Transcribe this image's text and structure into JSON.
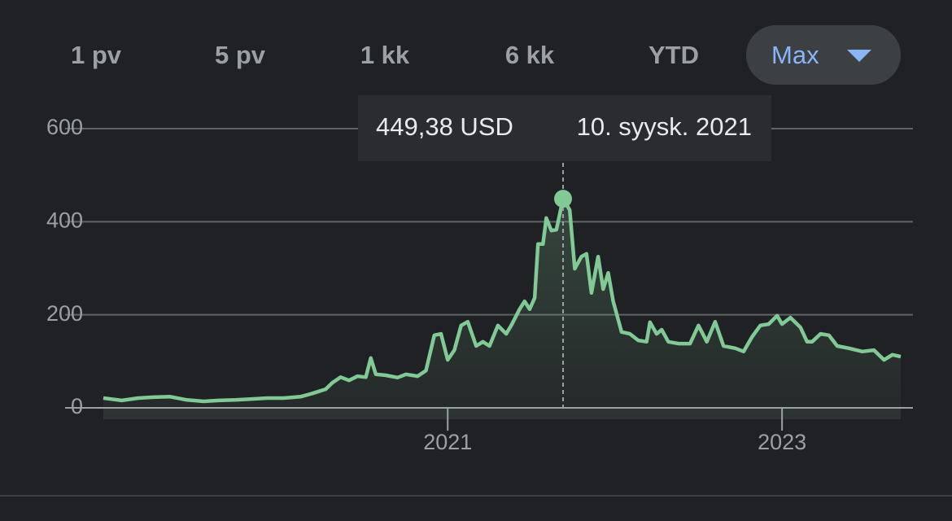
{
  "ranges": [
    "1 pv",
    "5 pv",
    "1 kk",
    "6 kk",
    "YTD",
    "Max"
  ],
  "selected": "Max",
  "chart_data": {
    "type": "line",
    "color": "#81c995",
    "grid": true,
    "tooltip": {
      "label": "449,38 USD",
      "date": "10. syysk. 2021"
    },
    "xlim": [
      2018.94,
      2023.71
    ],
    "ylim": [
      0,
      600
    ],
    "xticks": [
      2021,
      2023
    ],
    "yticks": [
      0,
      200,
      400,
      600
    ],
    "x": [
      2018.94,
      2019.05,
      2019.15,
      2019.24,
      2019.34,
      2019.44,
      2019.54,
      2019.63,
      2019.73,
      2019.83,
      2019.92,
      2020.02,
      2020.12,
      2020.19,
      2020.27,
      2020.31,
      2020.36,
      2020.41,
      2020.46,
      2020.51,
      2020.54,
      2020.57,
      2020.63,
      2020.7,
      2020.75,
      2020.82,
      2020.87,
      2020.92,
      2020.96,
      2021.0,
      2021.04,
      2021.08,
      2021.12,
      2021.17,
      2021.21,
      2021.25,
      2021.3,
      2021.35,
      2021.38,
      2021.43,
      2021.46,
      2021.49,
      2021.52,
      2021.54,
      2021.57,
      2021.59,
      2021.62,
      2021.65,
      2021.69,
      2021.73,
      2021.76,
      2021.8,
      2021.83,
      2021.86,
      2021.9,
      2021.93,
      2021.96,
      2021.99,
      2022.04,
      2022.09,
      2022.14,
      2022.19,
      2022.21,
      2022.25,
      2022.28,
      2022.32,
      2022.38,
      2022.45,
      2022.5,
      2022.55,
      2022.6,
      2022.65,
      2022.72,
      2022.77,
      2022.82,
      2022.87,
      2022.92,
      2022.97,
      2023.0,
      2023.05,
      2023.11,
      2023.15,
      2023.18,
      2023.23,
      2023.28,
      2023.33,
      2023.4,
      2023.48,
      2023.55,
      2023.61,
      2023.66,
      2023.71
    ],
    "values": [
      21,
      16,
      21,
      23,
      24,
      17,
      14,
      16,
      17,
      19,
      21,
      21,
      24,
      31,
      40,
      54,
      66,
      59,
      68,
      66,
      107,
      72,
      70,
      65,
      72,
      68,
      80,
      156,
      159,
      103,
      124,
      177,
      185,
      133,
      142,
      133,
      177,
      159,
      177,
      212,
      229,
      212,
      236,
      352,
      352,
      408,
      381,
      383,
      449.38,
      425,
      299,
      325,
      331,
      247,
      325,
      255,
      290,
      229,
      163,
      159,
      145,
      142,
      184,
      159,
      168,
      142,
      138,
      138,
      177,
      142,
      185,
      133,
      128,
      121,
      152,
      177,
      180,
      198,
      180,
      194,
      173,
      142,
      142,
      159,
      156,
      133,
      128,
      121,
      124,
      103,
      114,
      110
    ]
  }
}
